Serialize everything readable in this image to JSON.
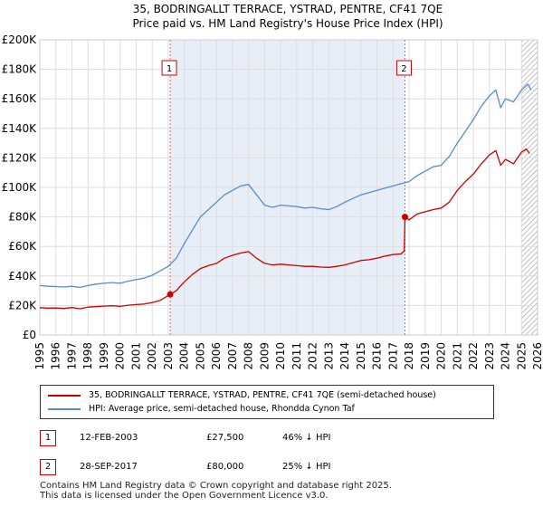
{
  "title": "35, BODRINGALLT TERRACE, YSTRAD, PENTRE, CF41 7QE",
  "subtitle": "Price paid vs. HM Land Registry's House Price Index (HPI)",
  "chart_data": {
    "type": "line",
    "title": "35, BODRINGALLT TERRACE, YSTRAD, PENTRE, CF41 7QE",
    "subtitle": "Price paid vs. HM Land Registry's House Price Index (HPI)",
    "xlim": [
      1995,
      2026
    ],
    "ylim": [
      0,
      200000
    ],
    "x_ticks": [
      1995,
      1996,
      1997,
      1998,
      1999,
      2000,
      2001,
      2002,
      2003,
      2004,
      2005,
      2006,
      2007,
      2008,
      2009,
      2010,
      2011,
      2012,
      2013,
      2014,
      2015,
      2016,
      2017,
      2018,
      2019,
      2020,
      2021,
      2022,
      2023,
      2024,
      2025,
      2026
    ],
    "y_ticks": [
      {
        "value": 0,
        "label": "£0"
      },
      {
        "value": 20000,
        "label": "£20K"
      },
      {
        "value": 40000,
        "label": "£40K"
      },
      {
        "value": 60000,
        "label": "£60K"
      },
      {
        "value": 80000,
        "label": "£80K"
      },
      {
        "value": 100000,
        "label": "£100K"
      },
      {
        "value": 120000,
        "label": "£120K"
      },
      {
        "value": 140000,
        "label": "£140K"
      },
      {
        "value": 160000,
        "label": "£160K"
      },
      {
        "value": 180000,
        "label": "£180K"
      },
      {
        "value": 200000,
        "label": "£200K"
      }
    ],
    "grid": true,
    "shaded_ranges": [
      [
        2003.12,
        2017.74
      ]
    ],
    "hatched_range": [
      2025.0,
      2026.0
    ],
    "series": [
      {
        "name": "35, BODRINGALLT TERRACE, YSTRAD, PENTRE, CF41 7QE (semi-detached house)",
        "color": "#cc0000",
        "points": [
          [
            1995.0,
            18500
          ],
          [
            1995.5,
            18200
          ],
          [
            1996.0,
            18300
          ],
          [
            1996.5,
            18000
          ],
          [
            1997.0,
            18600
          ],
          [
            1997.5,
            17800
          ],
          [
            1998.0,
            18900
          ],
          [
            1998.5,
            19200
          ],
          [
            1999.0,
            19600
          ],
          [
            1999.5,
            19800
          ],
          [
            2000.0,
            19400
          ],
          [
            2000.5,
            20200
          ],
          [
            2001.0,
            20600
          ],
          [
            2001.5,
            21000
          ],
          [
            2002.0,
            22000
          ],
          [
            2002.5,
            23500
          ],
          [
            2003.12,
            27500
          ],
          [
            2003.5,
            30000
          ],
          [
            2004.0,
            36000
          ],
          [
            2004.5,
            41000
          ],
          [
            2005.0,
            45000
          ],
          [
            2005.5,
            47000
          ],
          [
            2006.0,
            48500
          ],
          [
            2006.5,
            52000
          ],
          [
            2007.0,
            54000
          ],
          [
            2007.5,
            55500
          ],
          [
            2008.0,
            56500
          ],
          [
            2008.5,
            52000
          ],
          [
            2009.0,
            48500
          ],
          [
            2009.5,
            47500
          ],
          [
            2010.0,
            48000
          ],
          [
            2010.5,
            47500
          ],
          [
            2011.0,
            47000
          ],
          [
            2011.5,
            46500
          ],
          [
            2012.0,
            46500
          ],
          [
            2012.5,
            46000
          ],
          [
            2013.0,
            45800
          ],
          [
            2013.5,
            46500
          ],
          [
            2014.0,
            47500
          ],
          [
            2014.5,
            49000
          ],
          [
            2015.0,
            50500
          ],
          [
            2015.5,
            51000
          ],
          [
            2016.0,
            52000
          ],
          [
            2016.5,
            53500
          ],
          [
            2017.0,
            54500
          ],
          [
            2017.5,
            55000
          ],
          [
            2017.7,
            57000
          ],
          [
            2017.74,
            80000
          ],
          [
            2018.0,
            78000
          ],
          [
            2018.5,
            82000
          ],
          [
            2019.0,
            83500
          ],
          [
            2019.5,
            85000
          ],
          [
            2020.0,
            86000
          ],
          [
            2020.5,
            90000
          ],
          [
            2021.0,
            98000
          ],
          [
            2021.5,
            104000
          ],
          [
            2022.0,
            109000
          ],
          [
            2022.5,
            116000
          ],
          [
            2023.0,
            122000
          ],
          [
            2023.4,
            125000
          ],
          [
            2023.7,
            115000
          ],
          [
            2024.0,
            119000
          ],
          [
            2024.5,
            116000
          ],
          [
            2025.0,
            124000
          ],
          [
            2025.3,
            126000
          ],
          [
            2025.5,
            123000
          ]
        ]
      },
      {
        "name": "HPI: Average price, semi-detached house, Rhondda Cynon Taf",
        "color": "#5b8ac9",
        "points": [
          [
            1995.0,
            33500
          ],
          [
            1995.5,
            33000
          ],
          [
            1996.0,
            32800
          ],
          [
            1996.5,
            32500
          ],
          [
            1997.0,
            33000
          ],
          [
            1997.5,
            32200
          ],
          [
            1998.0,
            33500
          ],
          [
            1998.5,
            34500
          ],
          [
            1999.0,
            35000
          ],
          [
            1999.5,
            35500
          ],
          [
            2000.0,
            35000
          ],
          [
            2000.5,
            36500
          ],
          [
            2001.0,
            37500
          ],
          [
            2001.5,
            38500
          ],
          [
            2002.0,
            40500
          ],
          [
            2002.5,
            43500
          ],
          [
            2003.0,
            46500
          ],
          [
            2003.5,
            52000
          ],
          [
            2004.0,
            62000
          ],
          [
            2004.5,
            71000
          ],
          [
            2005.0,
            80000
          ],
          [
            2005.5,
            85000
          ],
          [
            2006.0,
            90000
          ],
          [
            2006.5,
            95000
          ],
          [
            2007.0,
            98000
          ],
          [
            2007.5,
            101000
          ],
          [
            2008.0,
            102000
          ],
          [
            2008.5,
            95000
          ],
          [
            2009.0,
            88000
          ],
          [
            2009.5,
            86500
          ],
          [
            2010.0,
            88000
          ],
          [
            2010.5,
            87500
          ],
          [
            2011.0,
            87000
          ],
          [
            2011.5,
            86000
          ],
          [
            2012.0,
            86500
          ],
          [
            2012.5,
            85500
          ],
          [
            2013.0,
            85000
          ],
          [
            2013.5,
            87000
          ],
          [
            2014.0,
            90000
          ],
          [
            2014.5,
            92500
          ],
          [
            2015.0,
            95000
          ],
          [
            2015.5,
            96500
          ],
          [
            2016.0,
            98000
          ],
          [
            2016.5,
            99500
          ],
          [
            2017.0,
            101000
          ],
          [
            2017.5,
            102500
          ],
          [
            2018.0,
            104000
          ],
          [
            2018.5,
            108000
          ],
          [
            2019.0,
            111000
          ],
          [
            2019.5,
            114000
          ],
          [
            2020.0,
            115000
          ],
          [
            2020.5,
            121000
          ],
          [
            2021.0,
            130000
          ],
          [
            2021.5,
            138000
          ],
          [
            2022.0,
            146000
          ],
          [
            2022.5,
            155000
          ],
          [
            2023.0,
            162000
          ],
          [
            2023.4,
            166000
          ],
          [
            2023.7,
            154000
          ],
          [
            2024.0,
            160000
          ],
          [
            2024.5,
            158000
          ],
          [
            2025.0,
            166000
          ],
          [
            2025.4,
            170000
          ],
          [
            2025.6,
            166000
          ]
        ]
      }
    ],
    "sales": [
      {
        "marker": "1",
        "x": 2003.12,
        "y": 27500
      },
      {
        "marker": "2",
        "x": 2017.74,
        "y": 80000
      }
    ]
  },
  "legend": [
    {
      "label": "35, BODRINGALLT TERRACE, YSTRAD, PENTRE, CF41 7QE (semi-detached house)",
      "color": "#cc0000"
    },
    {
      "label": "HPI: Average price, semi-detached house, Rhondda Cynon Taf",
      "color": "#5b8ac9"
    }
  ],
  "transactions": [
    {
      "marker": "1",
      "date": "12-FEB-2003",
      "price": "£27,500",
      "hpi": "46% ↓ HPI"
    },
    {
      "marker": "2",
      "date": "28-SEP-2017",
      "price": "£80,000",
      "hpi": "25% ↓ HPI"
    }
  ],
  "footer": {
    "line1": "Contains HM Land Registry data © Crown copyright and database right 2025.",
    "line2": "This data is licensed under the Open Government Licence v3.0."
  }
}
